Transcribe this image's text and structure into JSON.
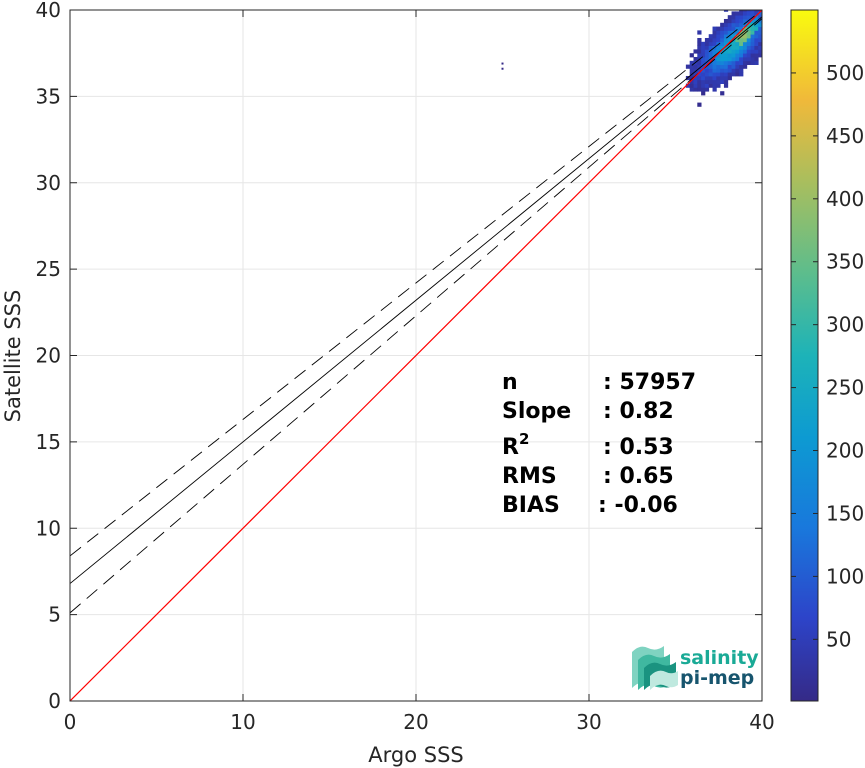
{
  "chart_data": {
    "type": "scatter",
    "subtype": "density-heatmap",
    "xlabel": "Argo SSS",
    "ylabel": "Satellite SSS",
    "xlim": [
      0,
      40
    ],
    "ylim": [
      0,
      40
    ],
    "xticks": [
      0,
      10,
      20,
      30,
      40
    ],
    "yticks": [
      0,
      5,
      10,
      15,
      20,
      25,
      30,
      35,
      40
    ],
    "grid": true,
    "lines": {
      "identity": {
        "intercept": 0,
        "slope": 1,
        "color": "#ff0000"
      },
      "fit": {
        "intercept": 6.8,
        "slope": 0.82,
        "color": "#000000"
      },
      "fit_upper": {
        "intercept": 8.4,
        "slope": 0.79,
        "color": "#000000",
        "dash": true
      },
      "fit_lower": {
        "intercept": 5.1,
        "slope": 0.86,
        "color": "#000000",
        "dash": true
      }
    },
    "density_cluster": {
      "x_center": 38.2,
      "y_center": 37.8,
      "max_count": 550
    },
    "outlier_points": [
      {
        "x": 25.0,
        "y": 36.9
      },
      {
        "x": 25.0,
        "y": 36.6
      }
    ],
    "colorbar": {
      "min": 1,
      "max": 550,
      "ticks": [
        50,
        100,
        150,
        200,
        250,
        300,
        350,
        400,
        450,
        500
      ],
      "colormap": "parula"
    },
    "stats": {
      "n": {
        "label": "n",
        "value": ": 57957"
      },
      "slope": {
        "label": "Slope",
        "value": ": 0.82"
      },
      "r2": {
        "label": "R",
        "sup": "2",
        "value": ": 0.53"
      },
      "rms": {
        "label": "RMS",
        "value": ": 0.65"
      },
      "bias": {
        "label": "BIAS",
        "value": ": -0.06"
      }
    }
  },
  "logo": {
    "line1": "salinity",
    "line2": "pi-mep",
    "color1": "#1aaa96",
    "color2": "#17556e"
  }
}
